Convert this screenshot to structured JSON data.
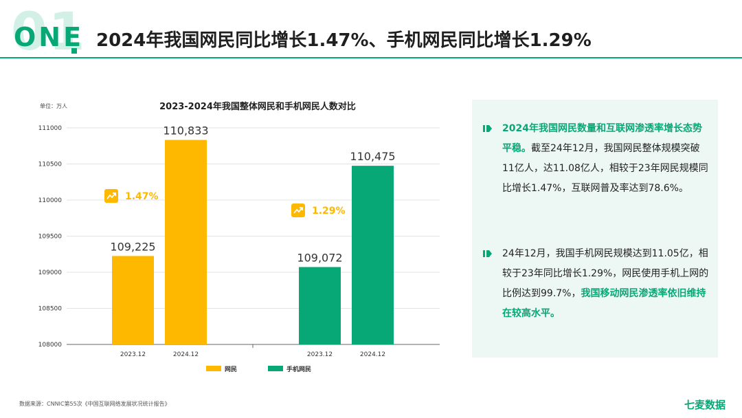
{
  "header": {
    "num_bg": "01",
    "num_fg": "ONE",
    "title": "2024年我国网民同比增长1.47%、手机网民同比增长1.29%"
  },
  "colors": {
    "accent": "#08a876",
    "yellow": "#ffb800",
    "panel_bg": "#edf8f4"
  },
  "chart_data": {
    "type": "bar",
    "title": "2023-2024年我国整体网民和手机网民人数对比",
    "unit_label": "单位：万人",
    "ylim": [
      108000,
      111000
    ],
    "yticks": [
      108000,
      108500,
      109000,
      109500,
      110000,
      110500,
      111000
    ],
    "grid": true,
    "legend_position": "bottom",
    "groups": [
      {
        "name": "网民",
        "color": "#ffb800",
        "categories": [
          "2023.12",
          "2024.12"
        ],
        "values": [
          109225,
          110833
        ],
        "value_labels": [
          "109,225",
          "110,833"
        ],
        "growth_label": "1.47%"
      },
      {
        "name": "手机网民",
        "color": "#08a876",
        "categories": [
          "2023.12",
          "2024.12"
        ],
        "values": [
          109072,
          110475
        ],
        "value_labels": [
          "109,072",
          "110,475"
        ],
        "growth_label": "1.29%"
      }
    ]
  },
  "panel": {
    "p1_highlight": "2024年我国网民数量和互联网渗透率增长态势平稳。",
    "p1_text": "截至24年12月，我国网民整体规模突破11亿人，达11.08亿人，相较于23年网民规模同比增长1.47%，互联网普及率达到78.6%。",
    "p2_text": "24年12月，我国手机网民规模达到11.05亿，相较于23年同比增长1.29%，网民使用手机上网的比例达到99.7%，",
    "p2_highlight": "我国移动网民渗透率依旧维持在较高水平。"
  },
  "footer": {
    "source": "数据来源：CNNIC第55次《中国互联网络发展状况统计报告》",
    "brand": "七麦数据"
  }
}
